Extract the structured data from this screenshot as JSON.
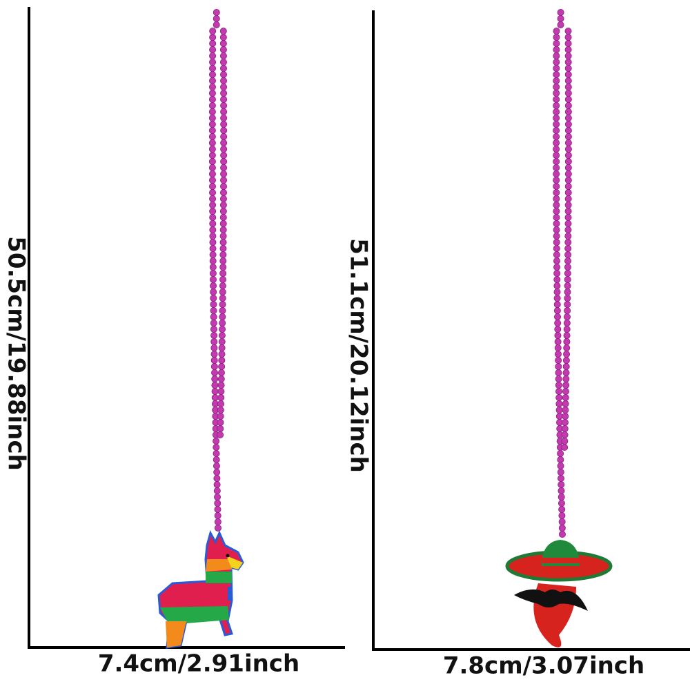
{
  "left": {
    "height_label": "50.5cm/19.88inch",
    "width_label": "7.4cm/2.91inch"
  },
  "right": {
    "height_label": "51.1cm/20.12inch",
    "width_label": "7.8cm/3.07inch"
  }
}
